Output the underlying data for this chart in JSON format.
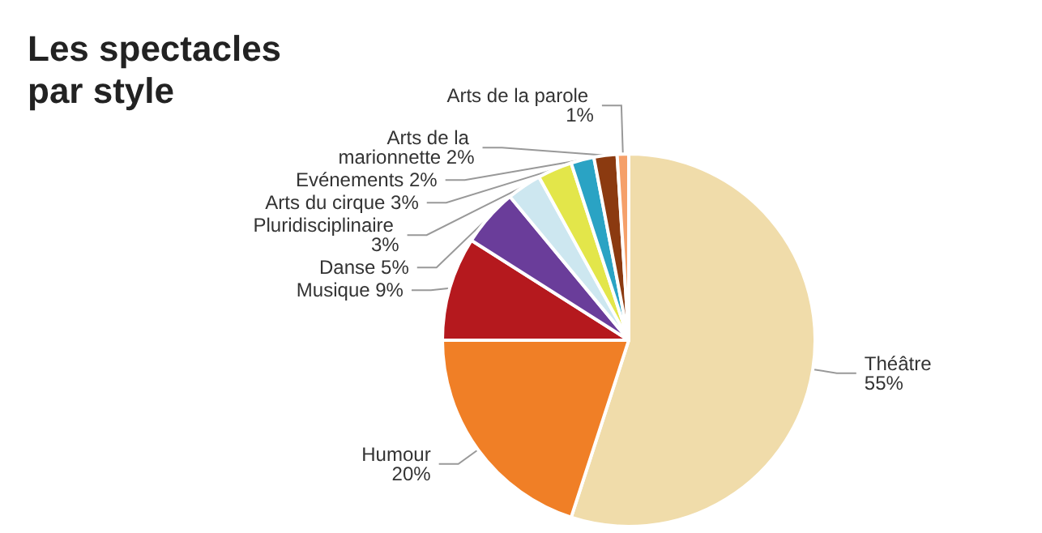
{
  "chart_data": {
    "type": "pie",
    "title": "Les spectacles par style",
    "categories": [
      "Théâtre",
      "Humour",
      "Musique",
      "Danse",
      "Pluridisciplinaire",
      "Arts du cirque",
      "Evénements",
      "Arts de la marionnette",
      "Arts de la parole"
    ],
    "values": [
      55,
      20,
      9,
      5,
      3,
      3,
      2,
      2,
      1
    ],
    "colors": [
      "#f0dcaa",
      "#f07f26",
      "#b5191e",
      "#6a3d9a",
      "#cde7f0",
      "#e3e64a",
      "#2aa3c4",
      "#8b3a10",
      "#f5a06a"
    ],
    "value_labels": [
      "55%",
      "20%",
      "9%",
      "5%",
      "3%",
      "3%",
      "2%",
      "2%",
      "1%"
    ],
    "legend": false
  }
}
